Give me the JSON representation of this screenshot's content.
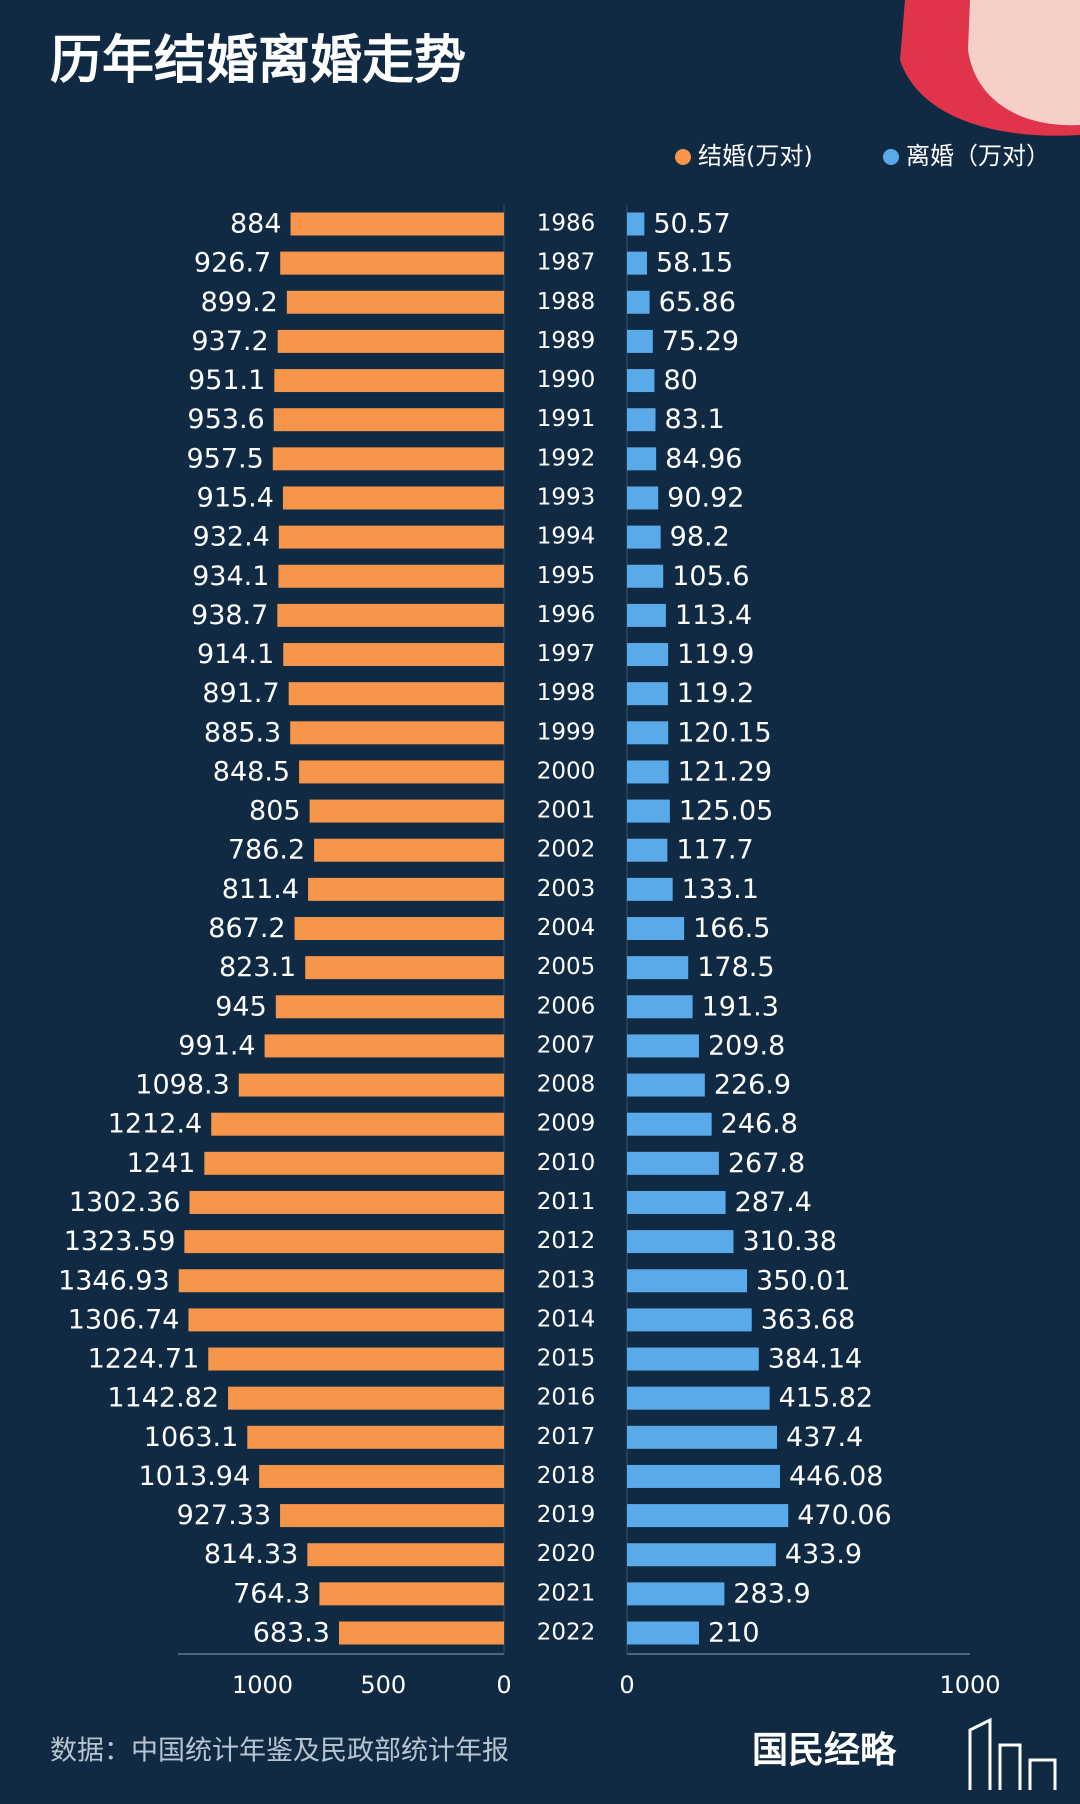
{
  "chart_data": {
    "type": "butterfly",
    "title": "历年结婚离婚走势",
    "categories": [
      "1986",
      "1987",
      "1988",
      "1989",
      "1990",
      "1991",
      "1992",
      "1993",
      "1994",
      "1995",
      "1996",
      "1997",
      "1998",
      "1999",
      "2000",
      "2001",
      "2002",
      "2003",
      "2004",
      "2005",
      "2006",
      "2007",
      "2008",
      "2009",
      "2010",
      "2011",
      "2012",
      "2013",
      "2014",
      "2015",
      "2016",
      "2017",
      "2018",
      "2019",
      "2020",
      "2021",
      "2022"
    ],
    "series": [
      {
        "name": "结婚(万对)",
        "color": "#f7954a",
        "side": "left",
        "xlim": [
          0,
          1350
        ],
        "xticks": [
          0,
          500,
          1000
        ],
        "values": [
          884,
          926.7,
          899.2,
          937.2,
          951.1,
          953.6,
          957.5,
          915.4,
          932.4,
          934.1,
          938.7,
          914.1,
          891.7,
          885.3,
          848.5,
          805,
          786.2,
          811.4,
          867.2,
          823.1,
          945,
          991.4,
          1098.3,
          1212.4,
          1241,
          1302.36,
          1323.59,
          1346.93,
          1306.74,
          1224.71,
          1142.82,
          1063.1,
          1013.94,
          927.33,
          814.33,
          764.3,
          683.3
        ]
      },
      {
        "name": "离婚（万对）",
        "color": "#5aaaea",
        "side": "right",
        "xlim": [
          0,
          1000
        ],
        "xticks": [
          0,
          1000
        ],
        "values": [
          50.57,
          58.15,
          65.86,
          75.29,
          80,
          83.1,
          84.96,
          90.92,
          98.2,
          105.6,
          113.4,
          119.9,
          119.2,
          120.15,
          121.29,
          125.05,
          117.7,
          133.1,
          166.5,
          178.5,
          191.3,
          209.8,
          226.9,
          246.8,
          267.8,
          287.4,
          310.38,
          350.01,
          363.68,
          384.14,
          415.82,
          437.4,
          446.08,
          470.06,
          433.9,
          283.9,
          210
        ]
      }
    ],
    "source": "数据：中国统计年鉴及民政部统计年报",
    "logo": "国民经略"
  }
}
